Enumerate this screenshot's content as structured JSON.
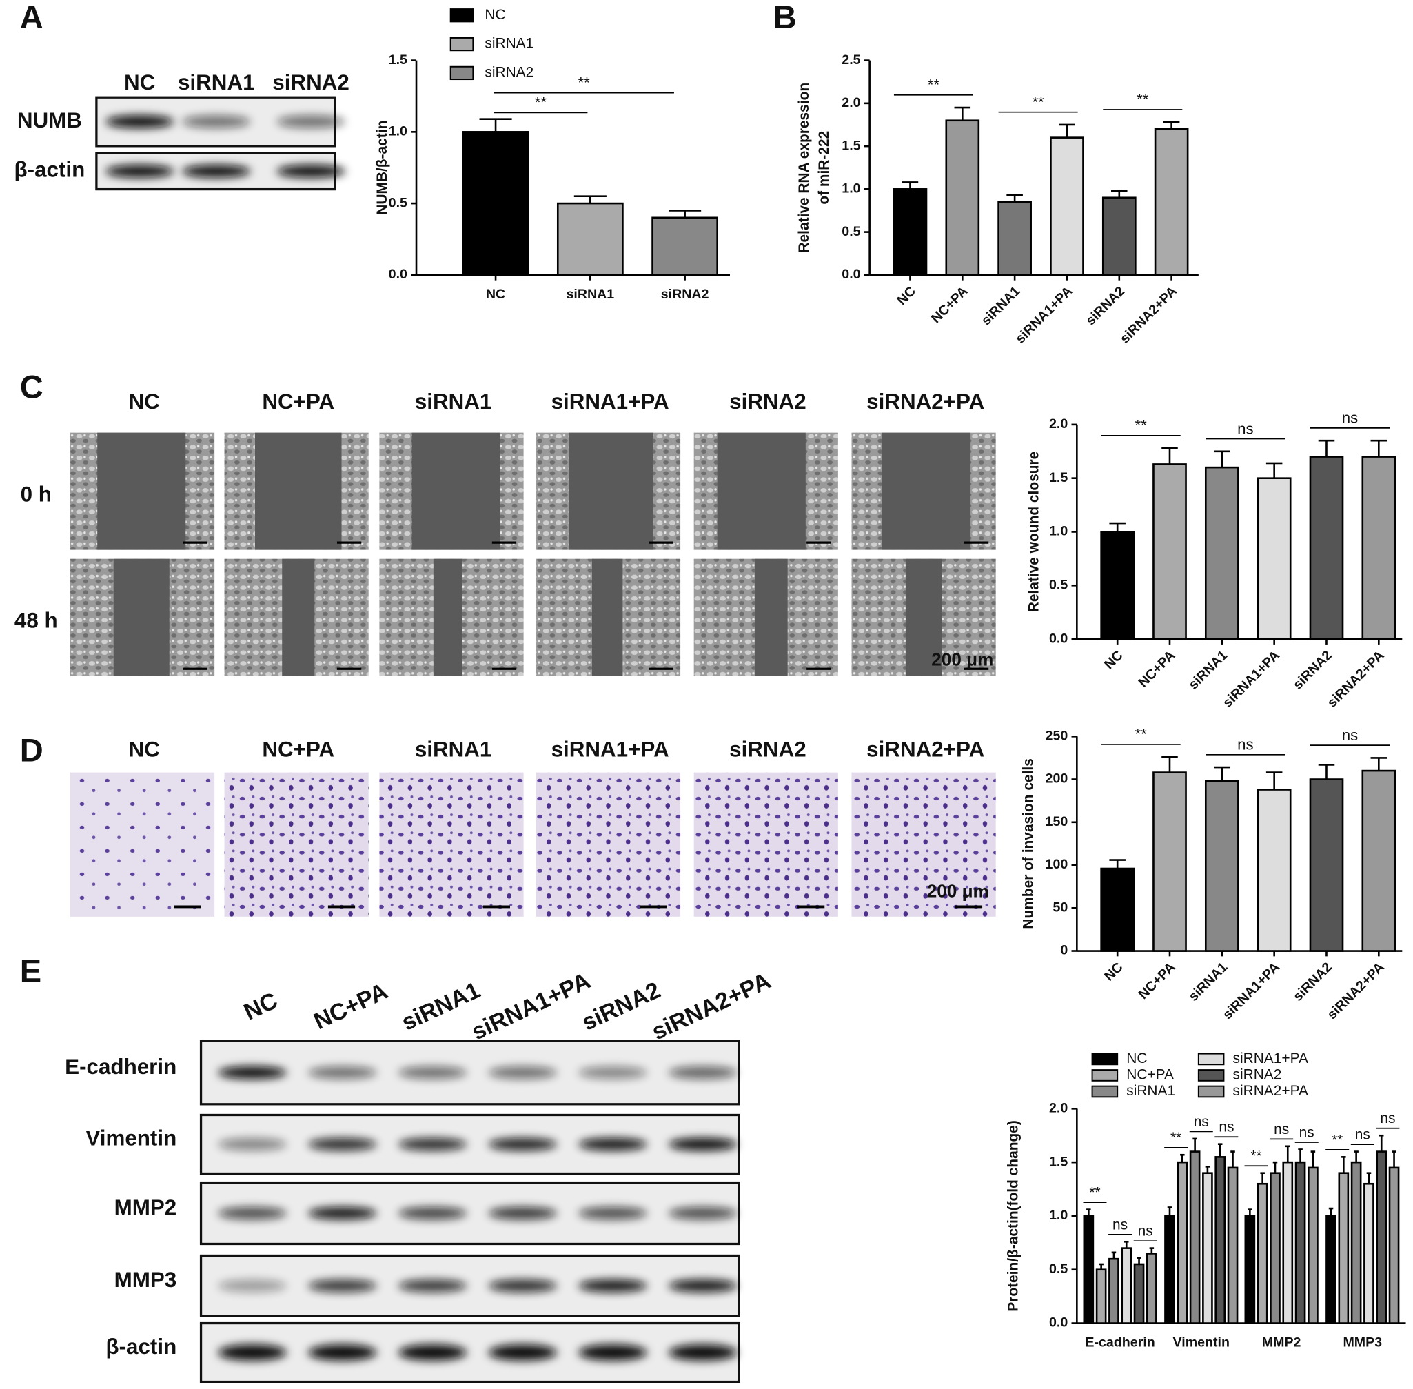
{
  "panel_labels": [
    "A",
    "B",
    "C",
    "D",
    "E"
  ],
  "blot_a": {
    "lanes": [
      "NC",
      "siRNA1",
      "siRNA2"
    ],
    "rows": [
      "NUMB",
      "β-actin"
    ]
  },
  "wound": {
    "columns": [
      "NC",
      "NC+PA",
      "siRNA1",
      "siRNA1+PA",
      "siRNA2",
      "siRNA2+PA"
    ],
    "rows": [
      "0 h",
      "48 h"
    ],
    "scale": "200 μm"
  },
  "invasion": {
    "columns": [
      "NC",
      "NC+PA",
      "siRNA1",
      "siRNA1+PA",
      "siRNA2",
      "siRNA2+PA"
    ],
    "scale": "200 μm"
  },
  "blot_e": {
    "lanes": [
      "NC",
      "NC+PA",
      "siRNA1",
      "siRNA1+PA",
      "siRNA2",
      "siRNA2+PA"
    ],
    "rows": [
      "E-cadherin",
      "Vimentin",
      "MMP2",
      "MMP3",
      "β-actin"
    ]
  },
  "chart_data": [
    {
      "type": "bar",
      "y_label": "NUMB/β-actin",
      "categories": [
        "NC",
        "siRNA1",
        "siRNA2"
      ],
      "values": [
        1.0,
        0.5,
        0.4
      ],
      "errors": [
        0.09,
        0.05,
        0.05
      ],
      "colors": [
        "#000000",
        "#aaaaaa",
        "#888888"
      ],
      "ylim": [
        0,
        1.5
      ],
      "yticks": [
        {
          "value": 0,
          "label": "0.0"
        },
        {
          "value": 0.5,
          "label": "0.5"
        },
        {
          "value": 1,
          "label": "1.0"
        },
        {
          "value": 1.5,
          "label": "1.5"
        }
      ],
      "legend": true,
      "annotations": [
        "**",
        "**"
      ]
    },
    {
      "type": "bar",
      "y_label": [
        "Relative RNA expression",
        "of miR-222"
      ],
      "categories": [
        "NC",
        "NC+PA",
        "siRNA1",
        "siRNA1+PA",
        "siRNA2",
        "siRNA2+PA"
      ],
      "values": [
        1.0,
        1.8,
        0.85,
        1.6,
        0.9,
        1.7
      ],
      "errors": [
        0.08,
        0.15,
        0.08,
        0.15,
        0.08,
        0.08
      ],
      "colors": [
        "#000000",
        "#999999",
        "#777777",
        "#dddddd",
        "#555555",
        "#aaaaaa"
      ],
      "ylim": [
        0,
        2.5
      ],
      "yticks": [
        {
          "value": 0,
          "label": "0.0"
        },
        {
          "value": 0.5,
          "label": "0.5"
        },
        {
          "value": 1,
          "label": "1.0"
        },
        {
          "value": 1.5,
          "label": "1.5"
        },
        {
          "value": 2,
          "label": "2.0"
        },
        {
          "value": 2.5,
          "label": "2.5"
        }
      ],
      "annotations": [
        "**",
        "**",
        "**"
      ]
    },
    {
      "type": "bar",
      "y_label": "Relative wound closure",
      "categories": [
        "NC",
        "NC+PA",
        "siRNA1",
        "siRNA1+PA",
        "siRNA2",
        "siRNA2+PA"
      ],
      "values": [
        1.0,
        1.63,
        1.6,
        1.5,
        1.7,
        1.7
      ],
      "errors": [
        0.08,
        0.15,
        0.15,
        0.14,
        0.15,
        0.15
      ],
      "colors": [
        "#000000",
        "#aaaaaa",
        "#888888",
        "#dddddd",
        "#555555",
        "#999999"
      ],
      "ylim": [
        0,
        2
      ],
      "yticks": [
        {
          "value": 0,
          "label": "0.0"
        },
        {
          "value": 0.5,
          "label": "0.5"
        },
        {
          "value": 1,
          "label": "1.0"
        },
        {
          "value": 1.5,
          "label": "1.5"
        },
        {
          "value": 2,
          "label": "2.0"
        }
      ],
      "annotations": [
        "**",
        "ns",
        "ns"
      ]
    },
    {
      "type": "bar",
      "y_label": "Number of invasion cells",
      "categories": [
        "NC",
        "NC+PA",
        "siRNA1",
        "siRNA1+PA",
        "siRNA2",
        "siRNA2+PA"
      ],
      "values": [
        96,
        208,
        198,
        188,
        200,
        210
      ],
      "errors": [
        10,
        18,
        16,
        20,
        17,
        15
      ],
      "colors": [
        "#000000",
        "#aaaaaa",
        "#888888",
        "#dddddd",
        "#555555",
        "#999999"
      ],
      "ylim": [
        0,
        250
      ],
      "yticks": [
        0,
        50,
        100,
        150,
        200,
        250
      ],
      "annotations": [
        "**",
        "ns",
        "ns"
      ]
    },
    {
      "type": "bar",
      "y_label": "Protein/β-actin(fold change)",
      "categories": [
        "E-cadherin",
        "Vimentin",
        "MMP2",
        "MMP3"
      ],
      "series": [
        {
          "name": "NC",
          "color": "#000000",
          "values": [
            1.0,
            1.0,
            1.0,
            1.0
          ],
          "errors": [
            0.06,
            0.08,
            0.06,
            0.07
          ]
        },
        {
          "name": "NC+PA",
          "color": "#aaaaaa",
          "values": [
            0.5,
            1.5,
            1.3,
            1.4
          ],
          "errors": [
            0.05,
            0.07,
            0.1,
            0.15
          ]
        },
        {
          "name": "siRNA1",
          "color": "#888888",
          "values": [
            0.6,
            1.6,
            1.4,
            1.5
          ],
          "errors": [
            0.06,
            0.12,
            0.1,
            0.1
          ]
        },
        {
          "name": "siRNA1+PA",
          "color": "#dddddd",
          "values": [
            0.7,
            1.4,
            1.5,
            1.3
          ],
          "errors": [
            0.06,
            0.06,
            0.15,
            0.1
          ]
        },
        {
          "name": "siRNA2",
          "color": "#555555",
          "values": [
            0.55,
            1.55,
            1.5,
            1.6
          ],
          "errors": [
            0.06,
            0.12,
            0.12,
            0.15
          ]
        },
        {
          "name": "siRNA2+PA",
          "color": "#999999",
          "values": [
            0.65,
            1.45,
            1.45,
            1.45
          ],
          "errors": [
            0.05,
            0.15,
            0.15,
            0.15
          ]
        }
      ],
      "ylim": [
        0,
        2
      ],
      "yticks": [
        {
          "value": 0,
          "label": "0.0"
        },
        {
          "value": 0.5,
          "label": "0.5"
        },
        {
          "value": 1,
          "label": "1.0"
        },
        {
          "value": 1.5,
          "label": "1.5"
        },
        {
          "value": 2,
          "label": "2.0"
        }
      ],
      "legend": true,
      "annotations": [
        [
          "**",
          "ns",
          "ns"
        ],
        [
          "**",
          "ns",
          "ns"
        ],
        [
          "**",
          "ns",
          "ns"
        ],
        [
          "**",
          "ns",
          "ns"
        ]
      ]
    }
  ]
}
